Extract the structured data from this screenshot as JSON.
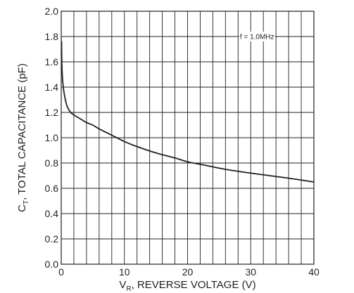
{
  "chart_data": {
    "type": "line",
    "title": "",
    "xlabel": {
      "main": "V",
      "sub": "R",
      "rest": ", REVERSE VOLTAGE (V)"
    },
    "ylabel": {
      "main": "C",
      "sub": "T",
      "rest": ", TOTAL CAPACITANCE (pF)"
    },
    "xlim": [
      0,
      40
    ],
    "ylim": [
      0,
      2.0
    ],
    "x_ticks": [
      0,
      10,
      20,
      30,
      40
    ],
    "x_tick_labels": [
      "0",
      "10",
      "20",
      "30",
      "40"
    ],
    "y_ticks": [
      0,
      0.2,
      0.4,
      0.6,
      0.8,
      1.0,
      1.2,
      1.4,
      1.6,
      1.8,
      2.0
    ],
    "y_tick_labels": [
      "0.0",
      "0.2",
      "0.4",
      "0.6",
      "0.8",
      "1.0",
      "1.2",
      "1.4",
      "1.6",
      "1.8",
      "2.0"
    ],
    "x_minor_step": 2,
    "y_minor_step": 0.2,
    "grid": true,
    "annotation": "f = 1.0MHz",
    "line_color": "#231f20",
    "grid_color": "#231f20",
    "series": [
      {
        "x": [
          0.05,
          0.1,
          0.2,
          0.35,
          0.5,
          0.75,
          1.0,
          1.5,
          2.0,
          3.0,
          4.0,
          5.0,
          6.0,
          8.0,
          10.0,
          12.0,
          15.0,
          18.0,
          20.0,
          23.0,
          26.0,
          30.0,
          33.0,
          36.0,
          40.0
        ],
        "y": [
          1.76,
          1.58,
          1.47,
          1.39,
          1.34,
          1.28,
          1.24,
          1.2,
          1.18,
          1.15,
          1.12,
          1.1,
          1.07,
          1.02,
          0.97,
          0.93,
          0.88,
          0.84,
          0.81,
          0.78,
          0.75,
          0.72,
          0.7,
          0.68,
          0.65
        ]
      }
    ]
  }
}
